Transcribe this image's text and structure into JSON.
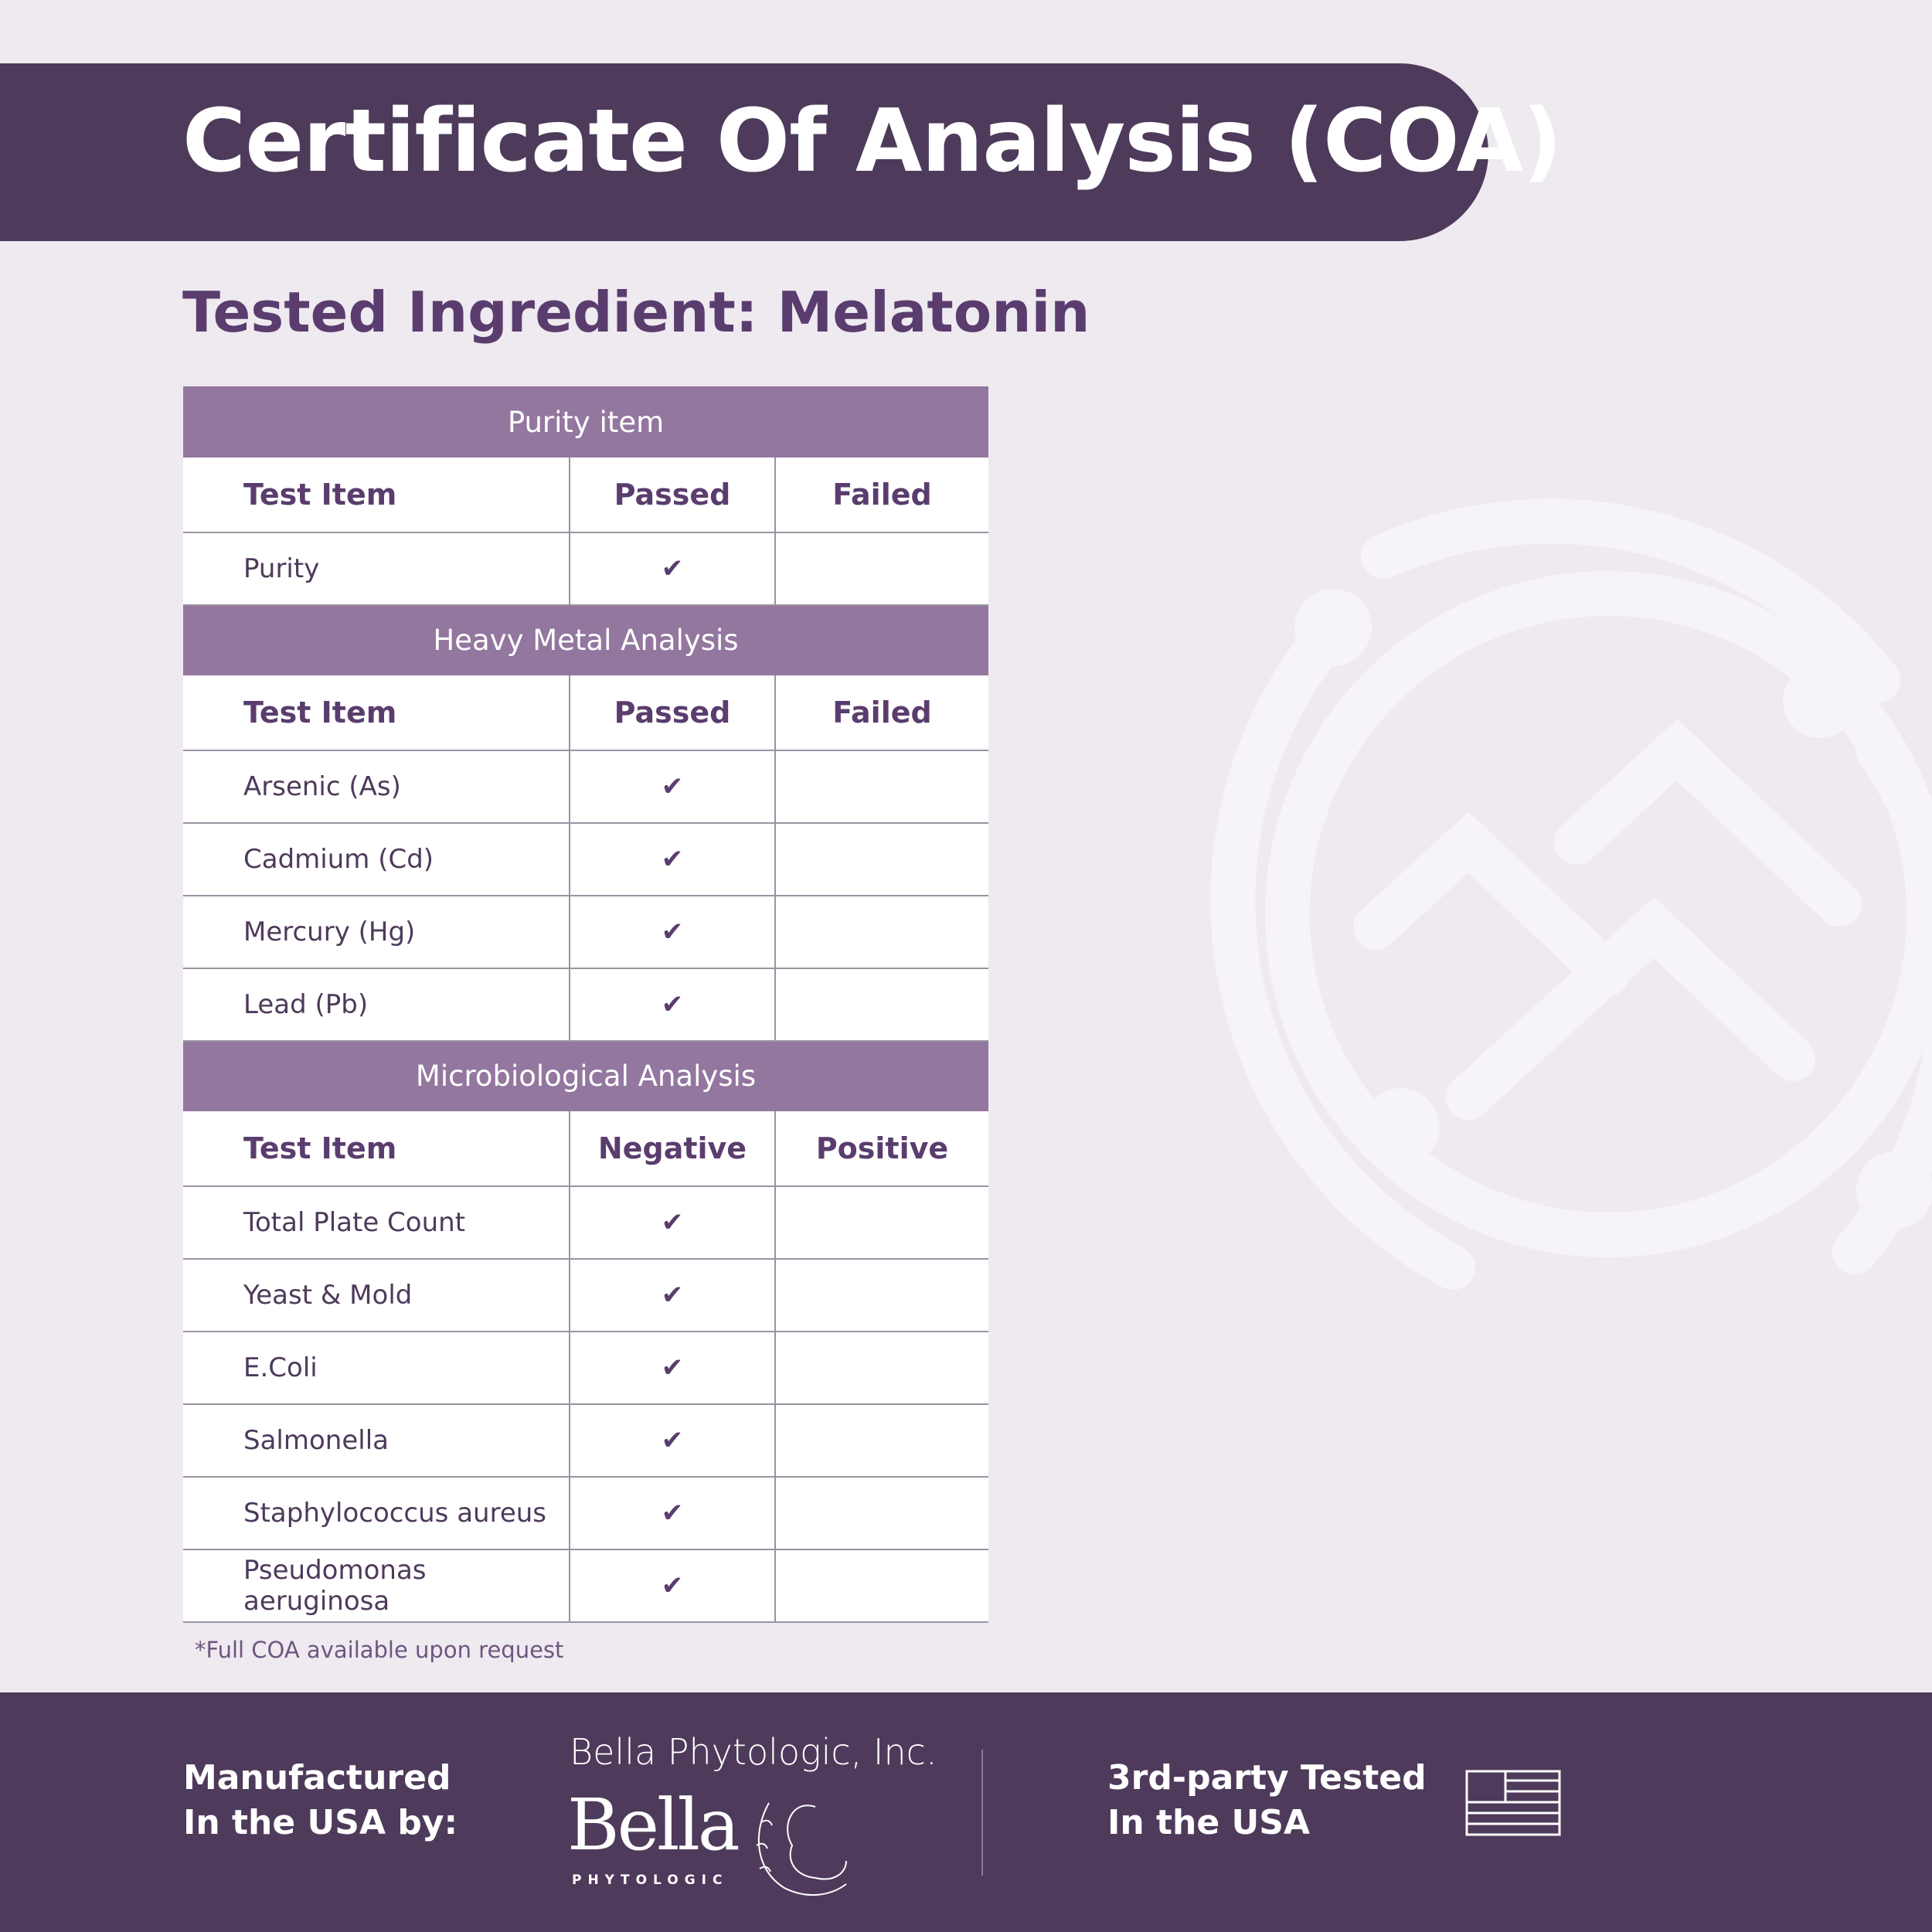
{
  "header": {
    "title": "Certificate Of Analysis (COA)"
  },
  "subtitle": "Tested Ingredient: Melatonin",
  "table": {
    "sections": [
      {
        "title": "Purity item",
        "columns": [
          "Test Item",
          "Passed",
          "Failed"
        ],
        "rows": [
          [
            "Purity",
            "✔",
            null
          ]
        ]
      },
      {
        "title": "Heavy Metal Analysis",
        "columns": [
          "Test Item",
          "Passed",
          "Failed"
        ],
        "rows": [
          [
            "Arsenic (As)",
            "✔",
            null
          ],
          [
            "Cadmium (Cd)",
            "✔",
            null
          ],
          [
            "Mercury (Hg)",
            "✔",
            null
          ],
          [
            "Lead (Pb)",
            "✔",
            null
          ]
        ]
      },
      {
        "title": "Microbiological Analysis",
        "columns": [
          "Test Item",
          "Negative",
          "Positive"
        ],
        "rows": [
          [
            "Total Plate Count",
            "✔",
            null
          ],
          [
            "Yeast & Mold",
            "✔",
            null
          ],
          [
            "E.Coli",
            "✔",
            null
          ],
          [
            "Salmonella",
            "✔",
            null
          ],
          [
            "Staphylococcus aureus",
            "✔",
            null
          ],
          [
            "Pseudomonas aeruginosa",
            "✔",
            null
          ]
        ]
      }
    ]
  },
  "footnote": "*Full COA available upon request",
  "footer": {
    "manufactured": [
      "Manufactured",
      "In the USA by:"
    ],
    "company": "Bella Phytologic, Inc.",
    "logo": {
      "name": "Bella",
      "subname": "PHYTOLOGIC"
    },
    "tested": [
      "3rd-party Tested",
      "In the USA"
    ]
  }
}
